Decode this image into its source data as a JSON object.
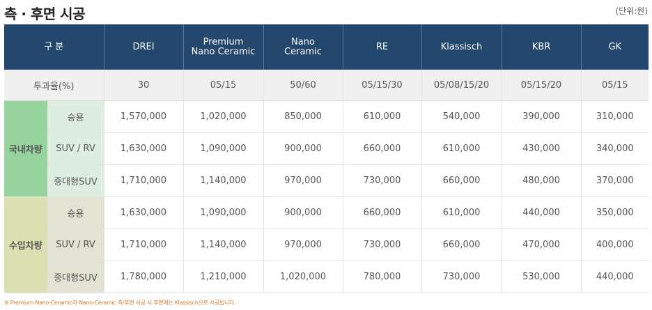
{
  "title": "측 · 후면 시공",
  "unit": "(단위:원)",
  "table": {
    "header_group": "구 분",
    "columns": [
      "DREI",
      "Premium\nNano Ceramic",
      "Nano\nCeramic",
      "RE",
      "Klassisch",
      "KBR",
      "GK"
    ],
    "transmittance": {
      "label": "투과율(%)",
      "values": [
        "30",
        "05/15",
        "50/60",
        "05/15/30",
        "05/08/15/20",
        "05/15/20",
        "05/15"
      ]
    },
    "groups": [
      {
        "name": "국내차량",
        "color": "#96d39d",
        "rows": [
          {
            "type": "승용",
            "values": [
              "1,570,000",
              "1,020,000",
              "850,000",
              "610,000",
              "540,000",
              "390,000",
              "310,000"
            ]
          },
          {
            "type": "SUV / RV",
            "values": [
              "1,630,000",
              "1,090,000",
              "900,000",
              "660,000",
              "610,000",
              "430,000",
              "340,000"
            ]
          },
          {
            "type": "중대형SUV",
            "values": [
              "1,710,000",
              "1,140,000",
              "970,000",
              "730,000",
              "660,000",
              "480,000",
              "370,000"
            ]
          }
        ]
      },
      {
        "name": "수입차량",
        "color": "#dbe0b3",
        "rows": [
          {
            "type": "승용",
            "values": [
              "1,630,000",
              "1,090,000",
              "900,000",
              "660,000",
              "610,000",
              "440,000",
              "350,000"
            ]
          },
          {
            "type": "SUV / RV",
            "values": [
              "1,710,000",
              "1,140,000",
              "970,000",
              "730,000",
              "660,000",
              "470,000",
              "400,000"
            ]
          },
          {
            "type": "중대형SUV",
            "values": [
              "1,780,000",
              "1,210,000",
              "1,020,000",
              "780,000",
              "730,000",
              "530,000",
              "440,000"
            ]
          }
        ]
      }
    ]
  },
  "note": "※ Premium Nano-Ceramic과 Nano-Ceramic 측/후면 시공 시 후면에는 Klassisch으로 시공됩니다."
}
